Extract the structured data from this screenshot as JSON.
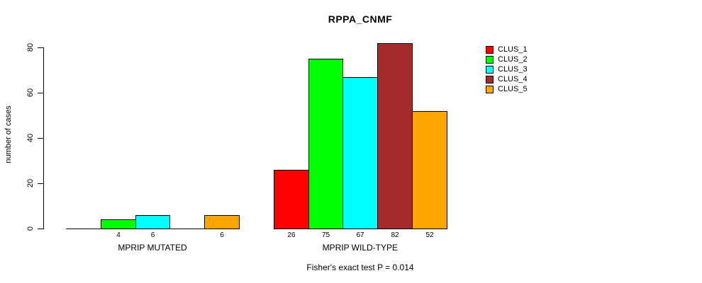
{
  "colors": {
    "background": "#ffffff",
    "axis": "#000000",
    "bar_border": "#000000",
    "text": "#000000"
  },
  "chart_data": {
    "type": "bar",
    "title": "RPPA_CNMF",
    "categories": [
      "MPRIP MUTATED",
      "MPRIP WILD-TYPE"
    ],
    "series": [
      {
        "name": "CLUS_1",
        "color": "#ff0000",
        "values": [
          0,
          26
        ]
      },
      {
        "name": "CLUS_2",
        "color": "#00ff00",
        "values": [
          4,
          75
        ]
      },
      {
        "name": "CLUS_3",
        "color": "#00ffff",
        "values": [
          6,
          67
        ]
      },
      {
        "name": "CLUS_4",
        "color": "#a52a2a",
        "values": [
          0,
          82
        ]
      },
      {
        "name": "CLUS_5",
        "color": "#ffa500",
        "values": [
          6,
          52
        ]
      }
    ],
    "bar_labels": [
      [
        "",
        "4",
        "6",
        "",
        "6"
      ],
      [
        "26",
        "75",
        "67",
        "82",
        "52"
      ]
    ],
    "xlabel": "",
    "ylabel": "number of cases",
    "ylim": [
      0,
      80
    ],
    "yticks": [
      0,
      20,
      40,
      60,
      80
    ],
    "grid": false,
    "legend_position": "top-right",
    "legend_labels": [
      "CLUS_1",
      "CLUS_2",
      "CLUS_3",
      "CLUS_4",
      "CLUS_5"
    ],
    "annotation": "Fisher's exact test P = 0.014"
  }
}
